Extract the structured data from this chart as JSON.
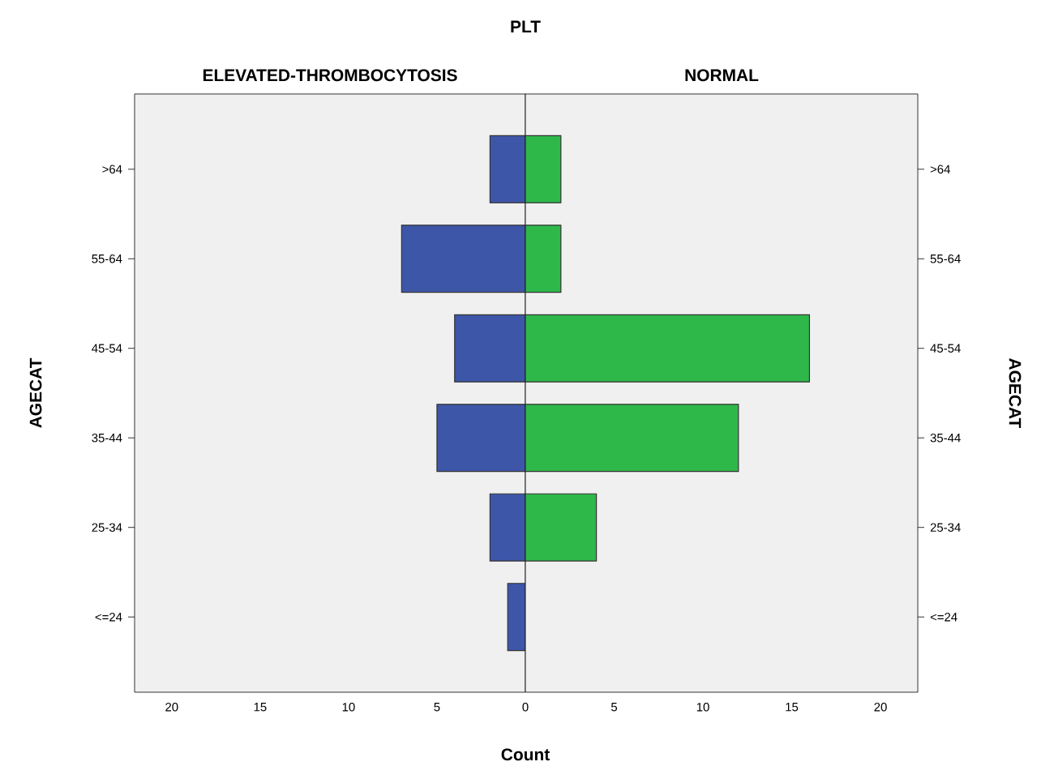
{
  "chart_data": [
    {
      "type": "bar",
      "orientation": "horizontal",
      "title": "PLT",
      "subtitle": "ELEVATED-THROMBOCYTOSIS",
      "xlabel": "Count",
      "ylabel": "AGECAT",
      "categories": [
        ">64",
        "55-64",
        "45-54",
        "35-44",
        "25-34",
        "<=24"
      ],
      "values": [
        2,
        7,
        4,
        5,
        2,
        1
      ],
      "color": "#3e56a8",
      "xlim": [
        22.1,
        0
      ],
      "xticks": [
        20,
        15,
        10,
        5
      ]
    },
    {
      "type": "bar",
      "orientation": "horizontal",
      "subtitle": "NORMAL",
      "ylabel": "AGECAT",
      "categories": [
        ">64",
        "55-64",
        "45-54",
        "35-44",
        "25-34",
        "<=24"
      ],
      "values": [
        2,
        2,
        16,
        12,
        4,
        null
      ],
      "color": "#2eb84a",
      "xlim": [
        0,
        22.1
      ],
      "xticks": [
        0,
        5,
        10,
        15,
        20
      ]
    }
  ]
}
